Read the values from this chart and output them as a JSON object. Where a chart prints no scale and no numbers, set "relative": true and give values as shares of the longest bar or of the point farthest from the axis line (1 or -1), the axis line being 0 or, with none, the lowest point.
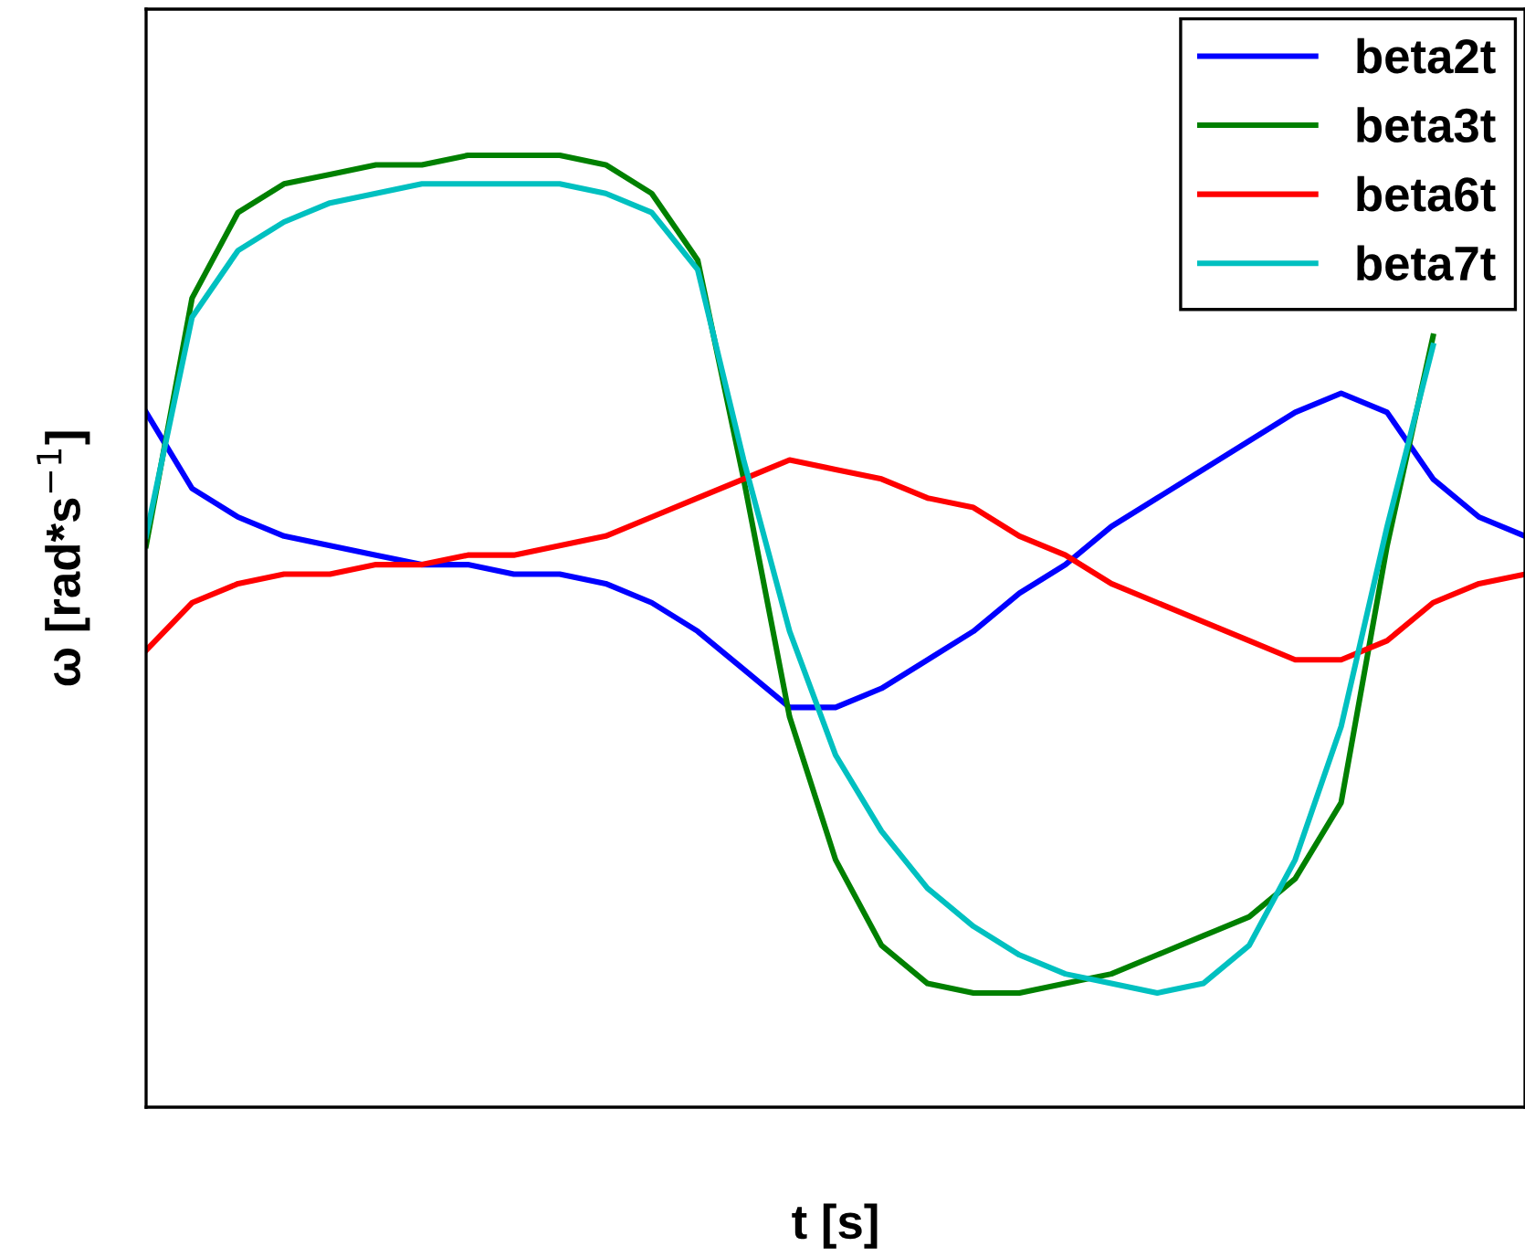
{
  "chart_data": {
    "type": "line",
    "relative": true,
    "xlabel": "t [s]",
    "ylabel": "ω [rad*s$^{−1}$]",
    "legend": "top right",
    "categories": [
      null,
      null,
      null,
      null,
      null,
      null,
      null,
      null,
      null,
      null,
      null,
      null,
      null,
      null,
      null,
      null,
      null,
      null,
      null,
      null,
      null,
      null,
      null,
      null,
      null,
      null,
      null,
      null,
      null,
      null,
      null
    ],
    "series": [
      {
        "name": "beta2t",
        "color": "#0000ff",
        "values": [
          0.73,
          0.65,
          0.62,
          0.6,
          0.59,
          0.58,
          0.57,
          0.57,
          0.56,
          0.56,
          0.55,
          0.53,
          0.5,
          0.46,
          0.42,
          0.42,
          0.44,
          0.47,
          0.5,
          0.54,
          0.57,
          0.61,
          0.64,
          0.67,
          0.7,
          0.73,
          0.75,
          0.73,
          0.66,
          0.62,
          0.6
        ]
      },
      {
        "name": "beta3t",
        "color": "#008000",
        "values": [
          0.59,
          0.85,
          0.94,
          0.97,
          0.98,
          0.99,
          0.99,
          1.0,
          1.0,
          1.0,
          0.99,
          0.96,
          0.89,
          0.66,
          0.41,
          0.26,
          0.17,
          0.13,
          0.12,
          0.12,
          0.13,
          0.14,
          0.16,
          0.18,
          0.2,
          0.24,
          0.32,
          0.59,
          0.81,
          null,
          null
        ]
      },
      {
        "name": "beta6t",
        "color": "#ff0000",
        "values": [
          0.48,
          0.53,
          0.55,
          0.56,
          0.56,
          0.57,
          0.57,
          0.58,
          0.58,
          0.59,
          0.6,
          0.62,
          0.64,
          0.66,
          0.68,
          0.67,
          0.66,
          0.64,
          0.63,
          0.6,
          0.58,
          0.55,
          0.53,
          0.51,
          0.49,
          0.47,
          0.47,
          0.49,
          0.53,
          0.55,
          0.56
        ]
      },
      {
        "name": "beta7t",
        "color": "#00c0c0",
        "values": [
          0.6,
          0.83,
          0.9,
          0.93,
          0.95,
          0.96,
          0.97,
          0.97,
          0.97,
          0.97,
          0.96,
          0.94,
          0.88,
          0.68,
          0.5,
          0.37,
          0.29,
          0.23,
          0.19,
          0.16,
          0.14,
          0.13,
          0.12,
          0.13,
          0.17,
          0.26,
          0.4,
          0.61,
          0.8,
          null,
          null
        ]
      }
    ]
  }
}
